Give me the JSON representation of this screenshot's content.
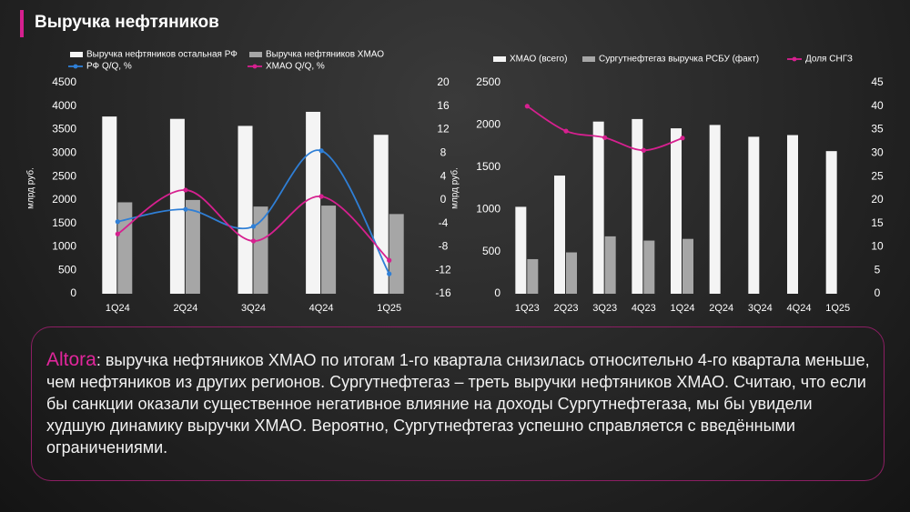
{
  "header": {
    "title": "Выручка нефтяников"
  },
  "note": {
    "author": "Altora",
    "text": ": выручка нефтяников ХМАО по итогам 1-го квартала снизилась относительно 4-го квартала меньше, чем нефтяников из других регионов. Сургутнефтегаз – треть выручки нефтяников ХМАО. Считаю, что если бы санкции оказали существенное негативное влияние на доходы Сургутнефтегаза, мы бы увидели худшую динамику выручки ХМАО. Вероятно, Сургутнефтегаз успешно справляется с введёнными ограничениями."
  },
  "chart_data": [
    {
      "type": "bar",
      "y_label": "млрд руб.",
      "categories": [
        "1Q24",
        "2Q24",
        "3Q24",
        "4Q24",
        "1Q25"
      ],
      "ylim": [
        0,
        4500
      ],
      "yticks": [
        0,
        500,
        1000,
        1500,
        2000,
        2500,
        3000,
        3500,
        4000,
        4500
      ],
      "y2lim": [
        -16,
        20
      ],
      "y2ticks": [
        -16,
        -12,
        -8,
        -4,
        0,
        4,
        8,
        12,
        16,
        20
      ],
      "series": [
        {
          "name": "Выручка нефтяников остальная РФ",
          "color": "#f4f4f4",
          "values": [
            3780,
            3730,
            3580,
            3880,
            3390
          ]
        },
        {
          "name": "Выручка нефтяников ХМАО",
          "color": "#a6a6a6",
          "values": [
            1950,
            2000,
            1860,
            1880,
            1700
          ]
        },
        {
          "name": "РФ Q/Q, %",
          "color": "#2f7fd6",
          "type": "line",
          "axis": "y2",
          "smooth": true,
          "values": [
            -3.7,
            -1.6,
            -4.5,
            8.4,
            -12.6
          ]
        },
        {
          "name": "ХМАО Q/Q, %",
          "color": "#d6208f",
          "type": "line",
          "axis": "y2",
          "smooth": true,
          "values": [
            -5.8,
            1.7,
            -7,
            0.6,
            -10.3
          ]
        }
      ]
    },
    {
      "type": "bar",
      "y_label": "млрд руб.",
      "categories": [
        "1Q23",
        "2Q23",
        "3Q23",
        "4Q23",
        "1Q24",
        "2Q24",
        "3Q24",
        "4Q24",
        "1Q25"
      ],
      "ylim": [
        0,
        2500
      ],
      "yticks": [
        0,
        500,
        1000,
        1500,
        2000,
        2500
      ],
      "y2lim": [
        0,
        45
      ],
      "y2ticks": [
        0,
        5,
        10,
        15,
        20,
        25,
        30,
        35,
        40,
        45
      ],
      "series": [
        {
          "name": "ХМАО (всего)",
          "color": "#f4f4f4",
          "values": [
            1030,
            1400,
            2040,
            2070,
            1960,
            2000,
            1860,
            1880,
            1690
          ]
        },
        {
          "name": "Сургутнефтегаз  выручка РСБУ  (факт)",
          "color": "#a6a6a6",
          "values": [
            410,
            490,
            680,
            630,
            650,
            null,
            null,
            null,
            null
          ]
        },
        {
          "name": "Доля  СНГЗ",
          "color": "#d6208f",
          "type": "line",
          "axis": "y2",
          "smooth": true,
          "values": [
            40,
            34.7,
            33.3,
            30.6,
            33.2,
            null,
            null,
            null,
            null
          ]
        }
      ]
    }
  ]
}
